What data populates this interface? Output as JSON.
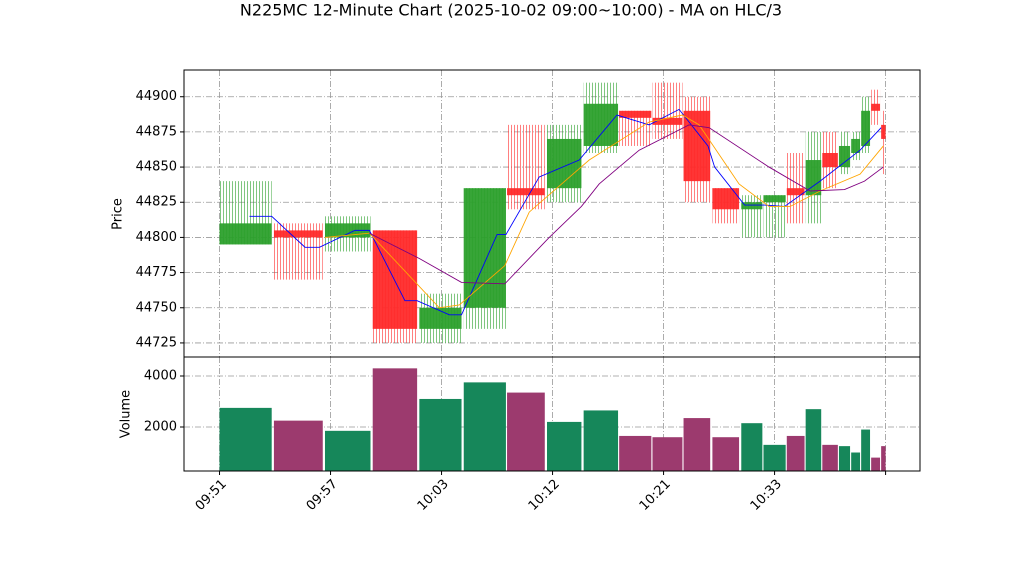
{
  "chart_data": {
    "type": "candlestick",
    "title": "N225MC 12-Minute Chart (2025-10-02 09:00~10:00) - MA on HLC/3",
    "ylabel": "Price",
    "volume_label": "Volume",
    "up_color": "#2ca02c",
    "down_color": "#ff2a2a",
    "volume_up_color": "#16875a",
    "volume_down_color": "#9c3a6e",
    "grid": true,
    "xlim": [
      -3.2,
      63.1
    ],
    "xticks": [
      {
        "value": 0,
        "label": "09:51"
      },
      {
        "value": 10,
        "label": "09:57"
      },
      {
        "value": 20,
        "label": "10:03"
      },
      {
        "value": 30,
        "label": "10:12"
      },
      {
        "value": 40,
        "label": "10:21"
      },
      {
        "value": 50,
        "label": "10:33"
      },
      {
        "value": 60,
        "label": null
      }
    ],
    "ylim": [
      44715,
      44919
    ],
    "yticks": [
      44725,
      44750,
      44775,
      44800,
      44825,
      44850,
      44875,
      44900
    ],
    "volume_ylim": [
      275,
      4745
    ],
    "volume_yticks": [
      2000,
      4000
    ],
    "x0": [
      0,
      4.9,
      9.5,
      13.8,
      18.0,
      22.0,
      25.9,
      29.5,
      32.8,
      36.0,
      39.0,
      41.8,
      44.4,
      47.0,
      49.0,
      51.1,
      52.8,
      54.3,
      55.8,
      56.9,
      57.8,
      58.7,
      59.6
    ],
    "x1": [
      4.7,
      9.3,
      13.6,
      17.8,
      21.8,
      25.8,
      29.3,
      32.6,
      35.9,
      38.9,
      41.7,
      44.2,
      46.8,
      48.9,
      51.0,
      52.7,
      54.2,
      55.7,
      56.8,
      57.7,
      58.6,
      59.5,
      60.0
    ],
    "open": [
      44795,
      44805,
      44800,
      44805,
      44735,
      44750,
      44835,
      44835,
      44865,
      44890,
      44885,
      44890,
      44835,
      44820,
      44825,
      44835,
      44830,
      44860,
      44850,
      44860,
      44865,
      44895,
      44880
    ],
    "high": [
      44840,
      44810,
      44815,
      44805,
      44760,
      44835,
      44880,
      44880,
      44910,
      44890,
      44910,
      44900,
      44835,
      44830,
      44830,
      44860,
      44875,
      44875,
      44875,
      44875,
      44900,
      44905,
      44890
    ],
    "low": [
      44795,
      44770,
      44790,
      44725,
      44725,
      44735,
      44820,
      44825,
      44860,
      44865,
      44870,
      44825,
      44810,
      44800,
      44800,
      44810,
      44810,
      44835,
      44845,
      44855,
      44860,
      44880,
      44845
    ],
    "close": [
      44810,
      44800,
      44810,
      44735,
      44750,
      44835,
      44830,
      44870,
      44895,
      44885,
      44880,
      44840,
      44820,
      44825,
      44830,
      44830,
      44855,
      44850,
      44865,
      44870,
      44890,
      44890,
      44870
    ],
    "volume": [
      2750,
      2250,
      1850,
      4300,
      3100,
      3750,
      3350,
      2200,
      2650,
      1650,
      1600,
      2350,
      1600,
      2150,
      1300,
      1650,
      2700,
      1300,
      1250,
      1000,
      1900,
      800,
      1250
    ],
    "series": [
      {
        "color": "#0000ff",
        "x": [
          2.7,
          4.7,
          7.7,
          9.0,
          12.2,
          13.5,
          16.7,
          17.8,
          20.7,
          21.8,
          25.0,
          25.8,
          28.8,
          32.4,
          35.8,
          38.7,
          41.4,
          44.0,
          44.6,
          47.3,
          49.1,
          50.9,
          54.1,
          57.7,
          59.6
        ],
        "values": [
          44815,
          44815,
          44793,
          44793,
          44805,
          44805,
          44755,
          44755,
          44745,
          44745,
          44802,
          44802,
          44843,
          44855,
          44887,
          44880,
          44891,
          44865,
          44850,
          44823,
          44823,
          44822,
          44840,
          44862,
          44878
        ]
      },
      {
        "color": "#ffa500",
        "x": [
          9.5,
          13.5,
          19.8,
          21.6,
          25.7,
          27.9,
          33.3,
          38.7,
          41.7,
          43.2,
          46.8,
          49.5,
          51.4,
          54.1,
          57.7,
          59.8
        ],
        "values": [
          44800,
          44803,
          44750,
          44752,
          44780,
          44818,
          44855,
          44882,
          44887,
          44880,
          44838,
          44822,
          44822,
          44833,
          44845,
          44865
        ]
      },
      {
        "color": "#800080",
        "x": [
          13.5,
          18.0,
          21.8,
          25.7,
          29.7,
          32.6,
          34.2,
          37.8,
          42.3,
          44.1,
          49.5,
          53.2,
          56.3,
          58.1,
          59.8
        ],
        "values": [
          44803,
          44785,
          44768,
          44767,
          44800,
          44822,
          44838,
          44862,
          44880,
          44878,
          44850,
          44833,
          44834,
          44840,
          44850
        ]
      }
    ]
  }
}
